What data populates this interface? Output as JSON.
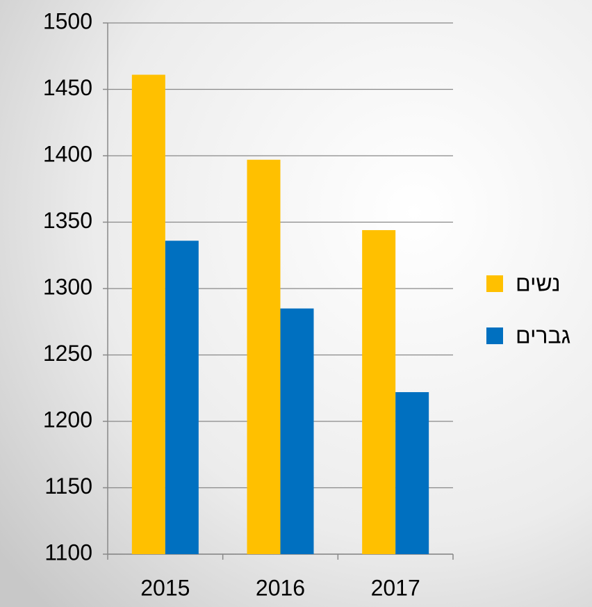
{
  "chart_data": {
    "type": "bar",
    "categories": [
      "2015",
      "2016",
      "2017"
    ],
    "series": [
      {
        "name": "נשים",
        "color": "#ffc000",
        "values": [
          1461,
          1397,
          1344
        ]
      },
      {
        "name": "גברים",
        "color": "#0070c0",
        "values": [
          1336,
          1285,
          1222
        ]
      }
    ],
    "ylim": [
      1100,
      1500
    ],
    "yticks": [
      1100,
      1150,
      1200,
      1250,
      1300,
      1350,
      1400,
      1450,
      1500
    ],
    "grid": true,
    "legend": "right"
  }
}
